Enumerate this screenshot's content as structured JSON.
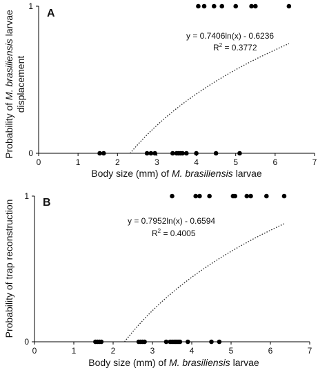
{
  "chart_data": [
    {
      "type": "scatter",
      "panel_label": "A",
      "title": "",
      "xlabel_parts": [
        "Body size (mm) of ",
        "M. brasiliensis",
        " larvae"
      ],
      "ylabel_line1_parts": [
        "Probability of ",
        "M. brasiliensis",
        " larvae"
      ],
      "ylabel_line2": "displacement",
      "xlim": [
        0,
        7
      ],
      "ylim": [
        0,
        1
      ],
      "xticks": [
        "0",
        "1",
        "2",
        "3",
        "4",
        "5",
        "6",
        "7"
      ],
      "yticks": [
        "0",
        "1"
      ],
      "grid": false,
      "series": [
        {
          "x": [
            1.55,
            1.65,
            2.75,
            2.85,
            2.95,
            3.4,
            3.5,
            3.55,
            3.6,
            3.65,
            3.75,
            4.0,
            4.5,
            5.1,
            4.05,
            4.2,
            4.45,
            4.65,
            5.0,
            5.4,
            5.5,
            6.35
          ],
          "y": [
            0,
            0,
            0,
            0,
            0,
            0,
            0,
            0,
            0,
            0,
            0,
            0,
            0,
            0,
            1,
            1,
            1,
            1,
            1,
            1,
            1,
            1
          ]
        }
      ],
      "fit": {
        "equation": "y = 0.7406ln(x) - 0.6236",
        "r2": "R",
        "r2_value": " = 0.3772",
        "a": 0.7406,
        "b": -0.6236,
        "x_range": [
          2.32,
          6.35
        ]
      }
    },
    {
      "type": "scatter",
      "panel_label": "B",
      "title": "",
      "xlabel_parts": [
        "Body size (mm) of ",
        "M. brasiliensis",
        " larvae"
      ],
      "ylabel_line1_parts": [
        "Probability of trap reconstruction",
        "",
        ""
      ],
      "ylabel_line2": "",
      "xlim": [
        0,
        7
      ],
      "ylim": [
        0,
        1
      ],
      "xticks": [
        "0",
        "1",
        "2",
        "3",
        "4",
        "5",
        "6",
        "7"
      ],
      "yticks": [
        "0",
        "1"
      ],
      "grid": false,
      "series": [
        {
          "x": [
            1.55,
            1.6,
            1.65,
            1.7,
            2.65,
            2.7,
            2.75,
            2.8,
            3.35,
            3.45,
            3.5,
            3.55,
            3.6,
            3.65,
            3.7,
            3.9,
            4.5,
            4.7,
            3.5,
            4.1,
            4.2,
            4.45,
            5.05,
            5.1,
            5.4,
            5.5,
            5.9,
            6.35
          ],
          "y": [
            0,
            0,
            0,
            0,
            0,
            0,
            0,
            0,
            0,
            0,
            0,
            0,
            0,
            0,
            0,
            0,
            0,
            0,
            1,
            1,
            1,
            1,
            1,
            1,
            1,
            1,
            1,
            1
          ]
        }
      ],
      "fit": {
        "equation": "y = 0.7952ln(x) - 0.6594",
        "r2": "R",
        "r2_value": " = 0.4005",
        "a": 0.7952,
        "b": -0.6594,
        "x_range": [
          2.29,
          6.35
        ]
      }
    }
  ]
}
